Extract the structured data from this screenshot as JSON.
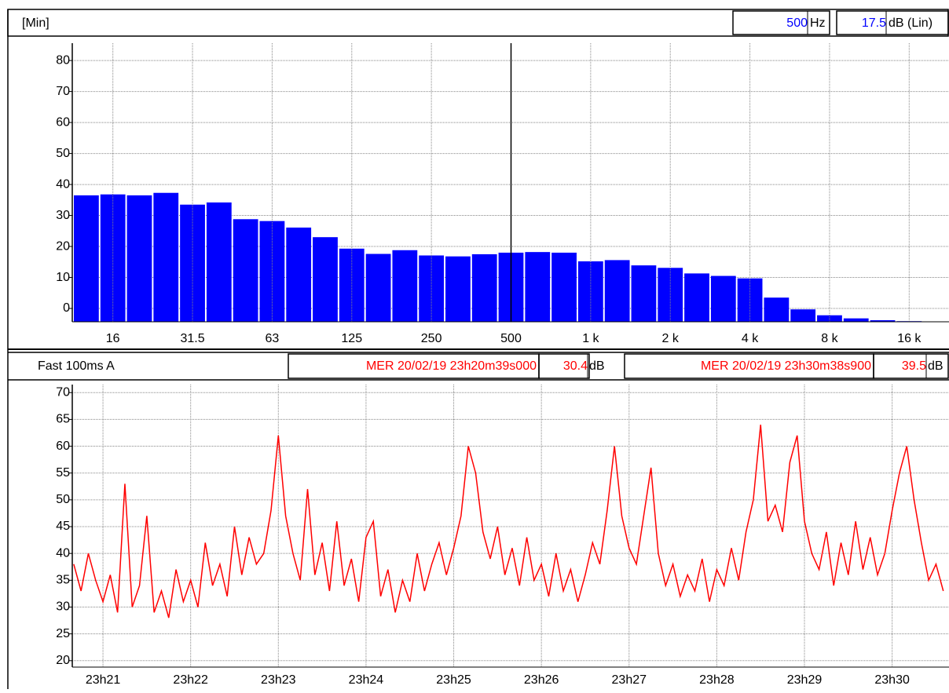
{
  "spectrum_header": {
    "mode": "[Min]",
    "cursor_freq": "500",
    "freq_unit": "Hz",
    "cursor_level": "17.5",
    "level_unit": "dB (Lin)"
  },
  "time_header": {
    "setting": "Fast 100ms A",
    "start": "MER 20/02/19 23h20m39s000",
    "start_level": "30.4",
    "start_unit": "dB",
    "end": "MER 20/02/19 23h30m38s900",
    "end_level": "39.5",
    "end_unit": "dB"
  },
  "chart_data": [
    {
      "type": "bar",
      "color": "#0000ff",
      "grid": true,
      "categories": [
        null,
        "16",
        null,
        null,
        "31.5",
        null,
        null,
        "63",
        null,
        null,
        "125",
        null,
        null,
        "250",
        null,
        null,
        "500",
        null,
        null,
        "1 k",
        null,
        null,
        "2 k",
        null,
        null,
        "4 k",
        null,
        null,
        "8 k",
        null,
        null,
        "16 k",
        null
      ],
      "values": [
        36.5,
        36.8,
        36.5,
        37.3,
        33.5,
        34.2,
        28.8,
        28.2,
        26.1,
        23,
        19.3,
        17.6,
        18.8,
        17.1,
        16.8,
        17.5,
        18,
        18.2,
        18,
        15.2,
        15.6,
        13.9,
        13.1,
        11.3,
        10.5,
        9.7,
        3.5,
        -0.3,
        -2.2,
        -3.2,
        -3.8,
        -4.1,
        -4.3
      ],
      "ylim": [
        -4.3,
        85.6
      ],
      "yticks": [
        0,
        10,
        20,
        30,
        40,
        50,
        60,
        70,
        80
      ]
    },
    {
      "type": "line",
      "color": "#ff0000",
      "grid": true,
      "x": [
        40,
        45,
        50,
        55,
        60,
        65,
        70,
        75,
        80,
        85,
        90,
        95,
        100,
        105,
        110,
        115,
        120,
        125,
        130,
        135,
        140,
        145,
        150,
        155,
        160,
        165,
        170,
        175,
        180,
        185,
        190,
        195,
        200,
        205,
        210,
        215,
        220,
        225,
        230,
        235,
        240,
        245,
        250,
        255,
        260,
        265,
        270,
        275,
        280,
        285,
        290,
        295,
        300,
        305,
        310,
        315,
        320,
        325,
        330,
        335,
        340,
        345,
        350,
        355,
        360,
        365,
        370,
        375,
        380,
        385,
        390,
        395,
        400,
        405,
        410,
        415,
        420,
        425,
        430,
        435,
        440,
        445,
        450,
        455,
        460,
        465,
        470,
        475,
        480,
        485,
        490,
        495,
        500,
        505,
        510,
        515,
        520,
        525,
        530,
        535,
        540,
        545,
        550,
        555,
        560,
        565,
        570,
        575,
        580,
        585,
        590,
        595,
        600,
        605,
        610,
        615,
        620,
        625,
        630,
        635
      ],
      "values": [
        38,
        33,
        40,
        35,
        31,
        36,
        29,
        53,
        30,
        34,
        47,
        29,
        33,
        28,
        37,
        31,
        35,
        30,
        42,
        34,
        38,
        32,
        45,
        36,
        43,
        38,
        40,
        48,
        62,
        47,
        40,
        35,
        52,
        36,
        42,
        33,
        46,
        34,
        39,
        31,
        43,
        46,
        32,
        37,
        29,
        35,
        31,
        40,
        33,
        38,
        42,
        36,
        41,
        47,
        60,
        55,
        44,
        39,
        45,
        36,
        41,
        34,
        43,
        35,
        38,
        32,
        40,
        33,
        37,
        31,
        36,
        42,
        38,
        48,
        60,
        47,
        41,
        38,
        47,
        56,
        40,
        34,
        38,
        32,
        36,
        33,
        39,
        31,
        37,
        34,
        41,
        35,
        44,
        50,
        64,
        46,
        49,
        44,
        57,
        62,
        46,
        40,
        37,
        44,
        34,
        42,
        36,
        46,
        37,
        43,
        36,
        40,
        48,
        55,
        60,
        50,
        42,
        35,
        38,
        33
      ],
      "xlim": [
        39,
        638.9
      ],
      "xticks": [
        {
          "value": 60,
          "label": "23h21"
        },
        {
          "value": 120,
          "label": "23h22"
        },
        {
          "value": 180,
          "label": "23h23"
        },
        {
          "value": 240,
          "label": "23h24"
        },
        {
          "value": 300,
          "label": "23h25"
        },
        {
          "value": 360,
          "label": "23h26"
        },
        {
          "value": 420,
          "label": "23h27"
        },
        {
          "value": 480,
          "label": "23h28"
        },
        {
          "value": 540,
          "label": "23h29"
        },
        {
          "value": 600,
          "label": "23h30"
        }
      ],
      "ylim": [
        18.8,
        71.5
      ],
      "yticks": [
        20,
        25,
        30,
        35,
        40,
        45,
        50,
        55,
        60,
        65,
        70
      ]
    }
  ]
}
